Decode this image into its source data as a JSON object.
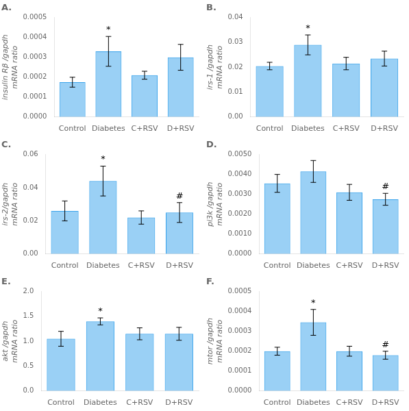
{
  "chart_data": [
    {
      "type": "bar",
      "title": "A.",
      "ylabel": "insulin Rβ /gapdh\nmRNA ratio",
      "categories": [
        "Control",
        "Diabetes",
        "C+RSV",
        "D+RSV"
      ],
      "values": [
        0.000175,
        0.00033,
        0.00021,
        0.0003
      ],
      "errors": [
        2.5e-05,
        7.5e-05,
        2e-05,
        6.5e-05
      ],
      "ylim": [
        0,
        0.0005
      ],
      "yticks": [
        {
          "value": 0,
          "label": "0.0000"
        },
        0.0001,
        0.0002,
        0.0003,
        0.0004,
        0.0005
      ],
      "annotations": [
        {
          "x": "Diabetes",
          "text": "*"
        }
      ],
      "grid": false
    },
    {
      "type": "bar",
      "title": "B.",
      "ylabel": "irs-1 /gapdh\nmRNA ratio",
      "categories": [
        "Control",
        "Diabetes",
        "C+RSV",
        "D+RSV"
      ],
      "values": [
        0.0205,
        0.029,
        0.0215,
        0.0235
      ],
      "errors": [
        0.0015,
        0.004,
        0.0025,
        0.003
      ],
      "ylim": [
        0,
        0.04
      ],
      "yticks": [
        {
          "value": 0,
          "label": "0.00"
        },
        0.01,
        0.02,
        0.03,
        0.04
      ],
      "annotations": [
        {
          "x": "Diabetes",
          "text": "*"
        }
      ],
      "grid": false
    },
    {
      "type": "bar",
      "title": "C.",
      "ylabel": "irs-2/gapdh\nmRNA ratio",
      "categories": [
        "Control",
        "Diabetes",
        "C+RSV",
        "D+RSV"
      ],
      "values": [
        0.026,
        0.044,
        0.022,
        0.025
      ],
      "errors": [
        0.006,
        0.009,
        0.004,
        0.006
      ],
      "ylim": [
        0,
        0.06
      ],
      "yticks": [
        {
          "value": 0,
          "label": "0.00"
        },
        0.02,
        0.04,
        0.06
      ],
      "annotations": [
        {
          "x": "Diabetes",
          "text": "*"
        },
        {
          "x": "D+RSV",
          "text": "#"
        }
      ],
      "grid": false
    },
    {
      "type": "bar",
      "title": "D.",
      "ylabel": "pi3k /gapdh\nmRNA ratio",
      "categories": [
        "Control",
        "Diabetes",
        "C+RSV",
        "D+RSV"
      ],
      "values": [
        0.00355,
        0.00415,
        0.0031,
        0.00275
      ],
      "errors": [
        0.00045,
        0.00055,
        0.0004,
        0.0003
      ],
      "ylim": [
        0,
        0.005
      ],
      "yticks": [
        {
          "value": 0,
          "label": "0.0000"
        },
        {
          "value": 0.001,
          "label": "0.0010"
        },
        {
          "value": 0.002,
          "label": "0.0020"
        },
        {
          "value": 0.003,
          "label": "0.0030"
        },
        {
          "value": 0.004,
          "label": "0.0040"
        },
        {
          "value": 0.005,
          "label": "0.0050"
        }
      ],
      "annotations": [
        {
          "x": "D+RSV",
          "text": "#"
        }
      ],
      "grid": false
    },
    {
      "type": "bar",
      "title": "E.",
      "ylabel": "akt /gapdh\nmRNA ratio",
      "categories": [
        "Control",
        "Diabetes",
        "C+RSV",
        "D+RSV"
      ],
      "values": [
        1.05,
        1.4,
        1.15,
        1.15
      ],
      "errors": [
        0.15,
        0.07,
        0.12,
        0.13
      ],
      "ylim": [
        0,
        2.0
      ],
      "yticks": [
        {
          "value": 0,
          "label": "0.0"
        },
        0.5,
        {
          "value": 1,
          "label": "1.0"
        },
        1.5,
        {
          "value": 2,
          "label": "2.0"
        }
      ],
      "annotations": [
        {
          "x": "Diabetes",
          "text": "*"
        }
      ],
      "grid": false
    },
    {
      "type": "bar",
      "title": "F.",
      "ylabel": "mtor /gapdh\nmRNA ratio",
      "categories": [
        "Control",
        "Diabetes",
        "C+RSV",
        "D+RSV"
      ],
      "values": [
        0.0002,
        0.000345,
        0.0002,
        0.00018
      ],
      "errors": [
        2e-05,
        6.5e-05,
        2.5e-05,
        2e-05
      ],
      "ylim": [
        0,
        0.0005
      ],
      "yticks": [
        {
          "value": 0,
          "label": "0.0000"
        },
        0.0001,
        0.0002,
        0.0003,
        0.0004,
        0.0005
      ],
      "annotations": [
        {
          "x": "Diabetes",
          "text": "*"
        },
        {
          "x": "D+RSV",
          "text": "#"
        }
      ],
      "grid": false
    }
  ]
}
